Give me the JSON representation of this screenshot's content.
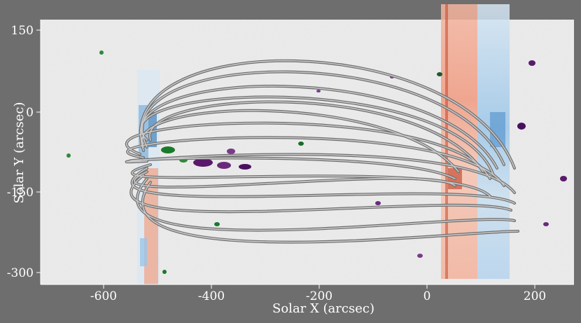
{
  "figure": {
    "xlabel": "Solar X (arcsec)",
    "ylabel": "Solar Y (arcsec)",
    "xticks": [
      "-600",
      "-400",
      "-200",
      "0",
      "200"
    ],
    "yticks": [
      "150",
      "0",
      "-150",
      "-300"
    ],
    "colors": {
      "background": "#6e6e6e",
      "image_base": "#eeeeee",
      "positive_field": "#1a7a2a",
      "negative_field": "#5a1a6a",
      "doppler_red": "#e8603c",
      "doppler_blue": "#5aa0d8",
      "loops": "#8c8c8c"
    },
    "description_items": [
      "magnetogram",
      "spectrograph-raster-strips",
      "coronal-loops"
    ]
  }
}
